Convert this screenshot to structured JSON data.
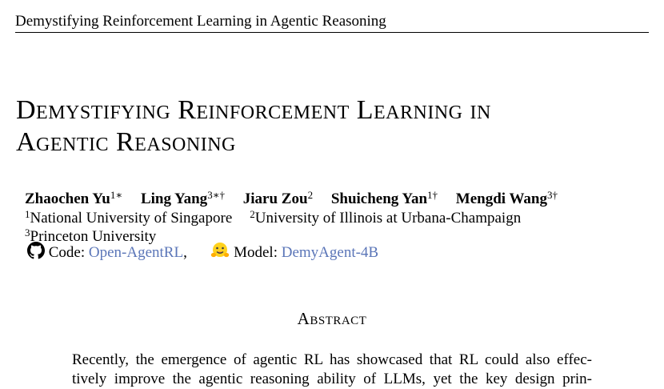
{
  "running_head": "Demystifying Reinforcement Learning in Agentic Reasoning",
  "title": {
    "line1": "Demystifying Reinforcement Learning in",
    "line2": "Agentic Reasoning"
  },
  "authors": [
    {
      "name": "Zhaochen Yu",
      "marks": "1∗"
    },
    {
      "name": "Ling Yang",
      "marks": "3∗†"
    },
    {
      "name": "Jiaru Zou",
      "marks": "2"
    },
    {
      "name": "Shuicheng Yan",
      "marks": "1†"
    },
    {
      "name": "Mengdi Wang",
      "marks": "3†"
    }
  ],
  "affiliations": [
    {
      "mark": "1",
      "name": "National University of Singapore"
    },
    {
      "mark": "2",
      "name": "University of Illinois at Urbana-Champaign"
    },
    {
      "mark": "3",
      "name": "Princeton University"
    }
  ],
  "links": {
    "code_label": "Code:",
    "code_link": "Open-AgentRL",
    "separator": ",",
    "model_label": "Model:",
    "model_link": "DemyAgent-4B",
    "icons": [
      "github-icon",
      "huggingface-icon"
    ],
    "link_color": "#5b76b8"
  },
  "abstract": {
    "heading": "Abstract",
    "line1": "Recently, the emergence of agentic RL has showcased that RL could also effec-",
    "line2": "tively improve the agentic reasoning ability of LLMs, yet the key design prin-"
  }
}
